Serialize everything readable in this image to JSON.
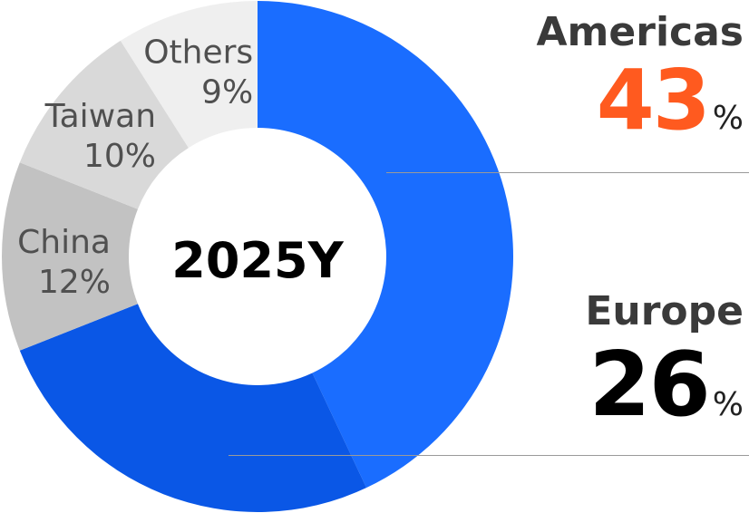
{
  "chart_data": {
    "type": "pie",
    "variant": "donut",
    "center_label": "2025Y",
    "slices": [
      {
        "name": "Americas",
        "value": 43,
        "label": "43",
        "unit": "%",
        "color": "#1a6dff"
      },
      {
        "name": "Europe",
        "value": 26,
        "label": "26",
        "unit": "%",
        "color": "#0a57e6"
      },
      {
        "name": "China",
        "value": 12,
        "label": "12%",
        "color": "#c2c2c2"
      },
      {
        "name": "Taiwan",
        "value": 10,
        "label": "10%",
        "color": "#d9d9d9"
      },
      {
        "name": "Others",
        "value": 9,
        "label": "9%",
        "color": "#efefef"
      }
    ]
  },
  "colors": {
    "americas_value": "#ff5a1f",
    "europe_value": "#000000",
    "small_label": "#505050",
    "leader_line": "#9a9a9a"
  }
}
